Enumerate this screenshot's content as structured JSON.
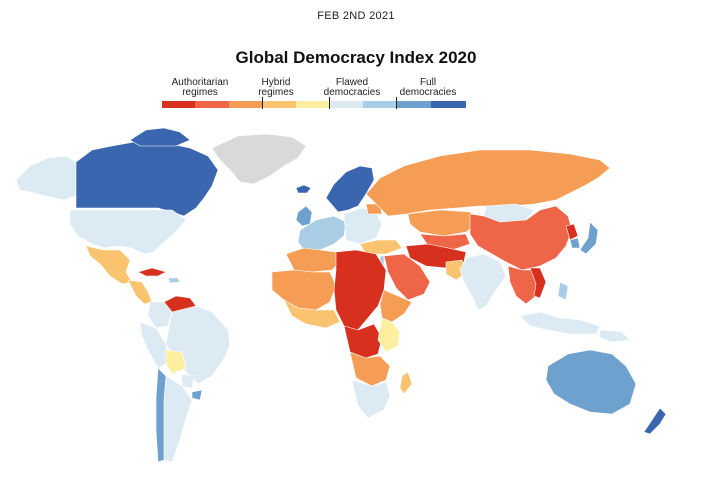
{
  "date": "FEB 2ND 2021",
  "title": "Global Democracy Index 2020",
  "legend": {
    "groups": [
      {
        "label": "Authoritarian\nregimes",
        "colors": [
          "#d7301f",
          "#ef6548",
          "#f59d55"
        ]
      },
      {
        "label": "Hybrid\nregimes",
        "colors": [
          "#f9c370",
          "#fdeea0"
        ]
      },
      {
        "label": "Flawed\ndemocracies",
        "colors": [
          "#dbeaf3",
          "#a9cde4"
        ]
      },
      {
        "label": "Full\ndemocracies",
        "colors": [
          "#6fa1cf",
          "#3a66b0"
        ]
      }
    ]
  },
  "colors": {
    "no_data": "#d9d9d9",
    "ocean": "#ffffff",
    "border": "#ffffff"
  }
}
